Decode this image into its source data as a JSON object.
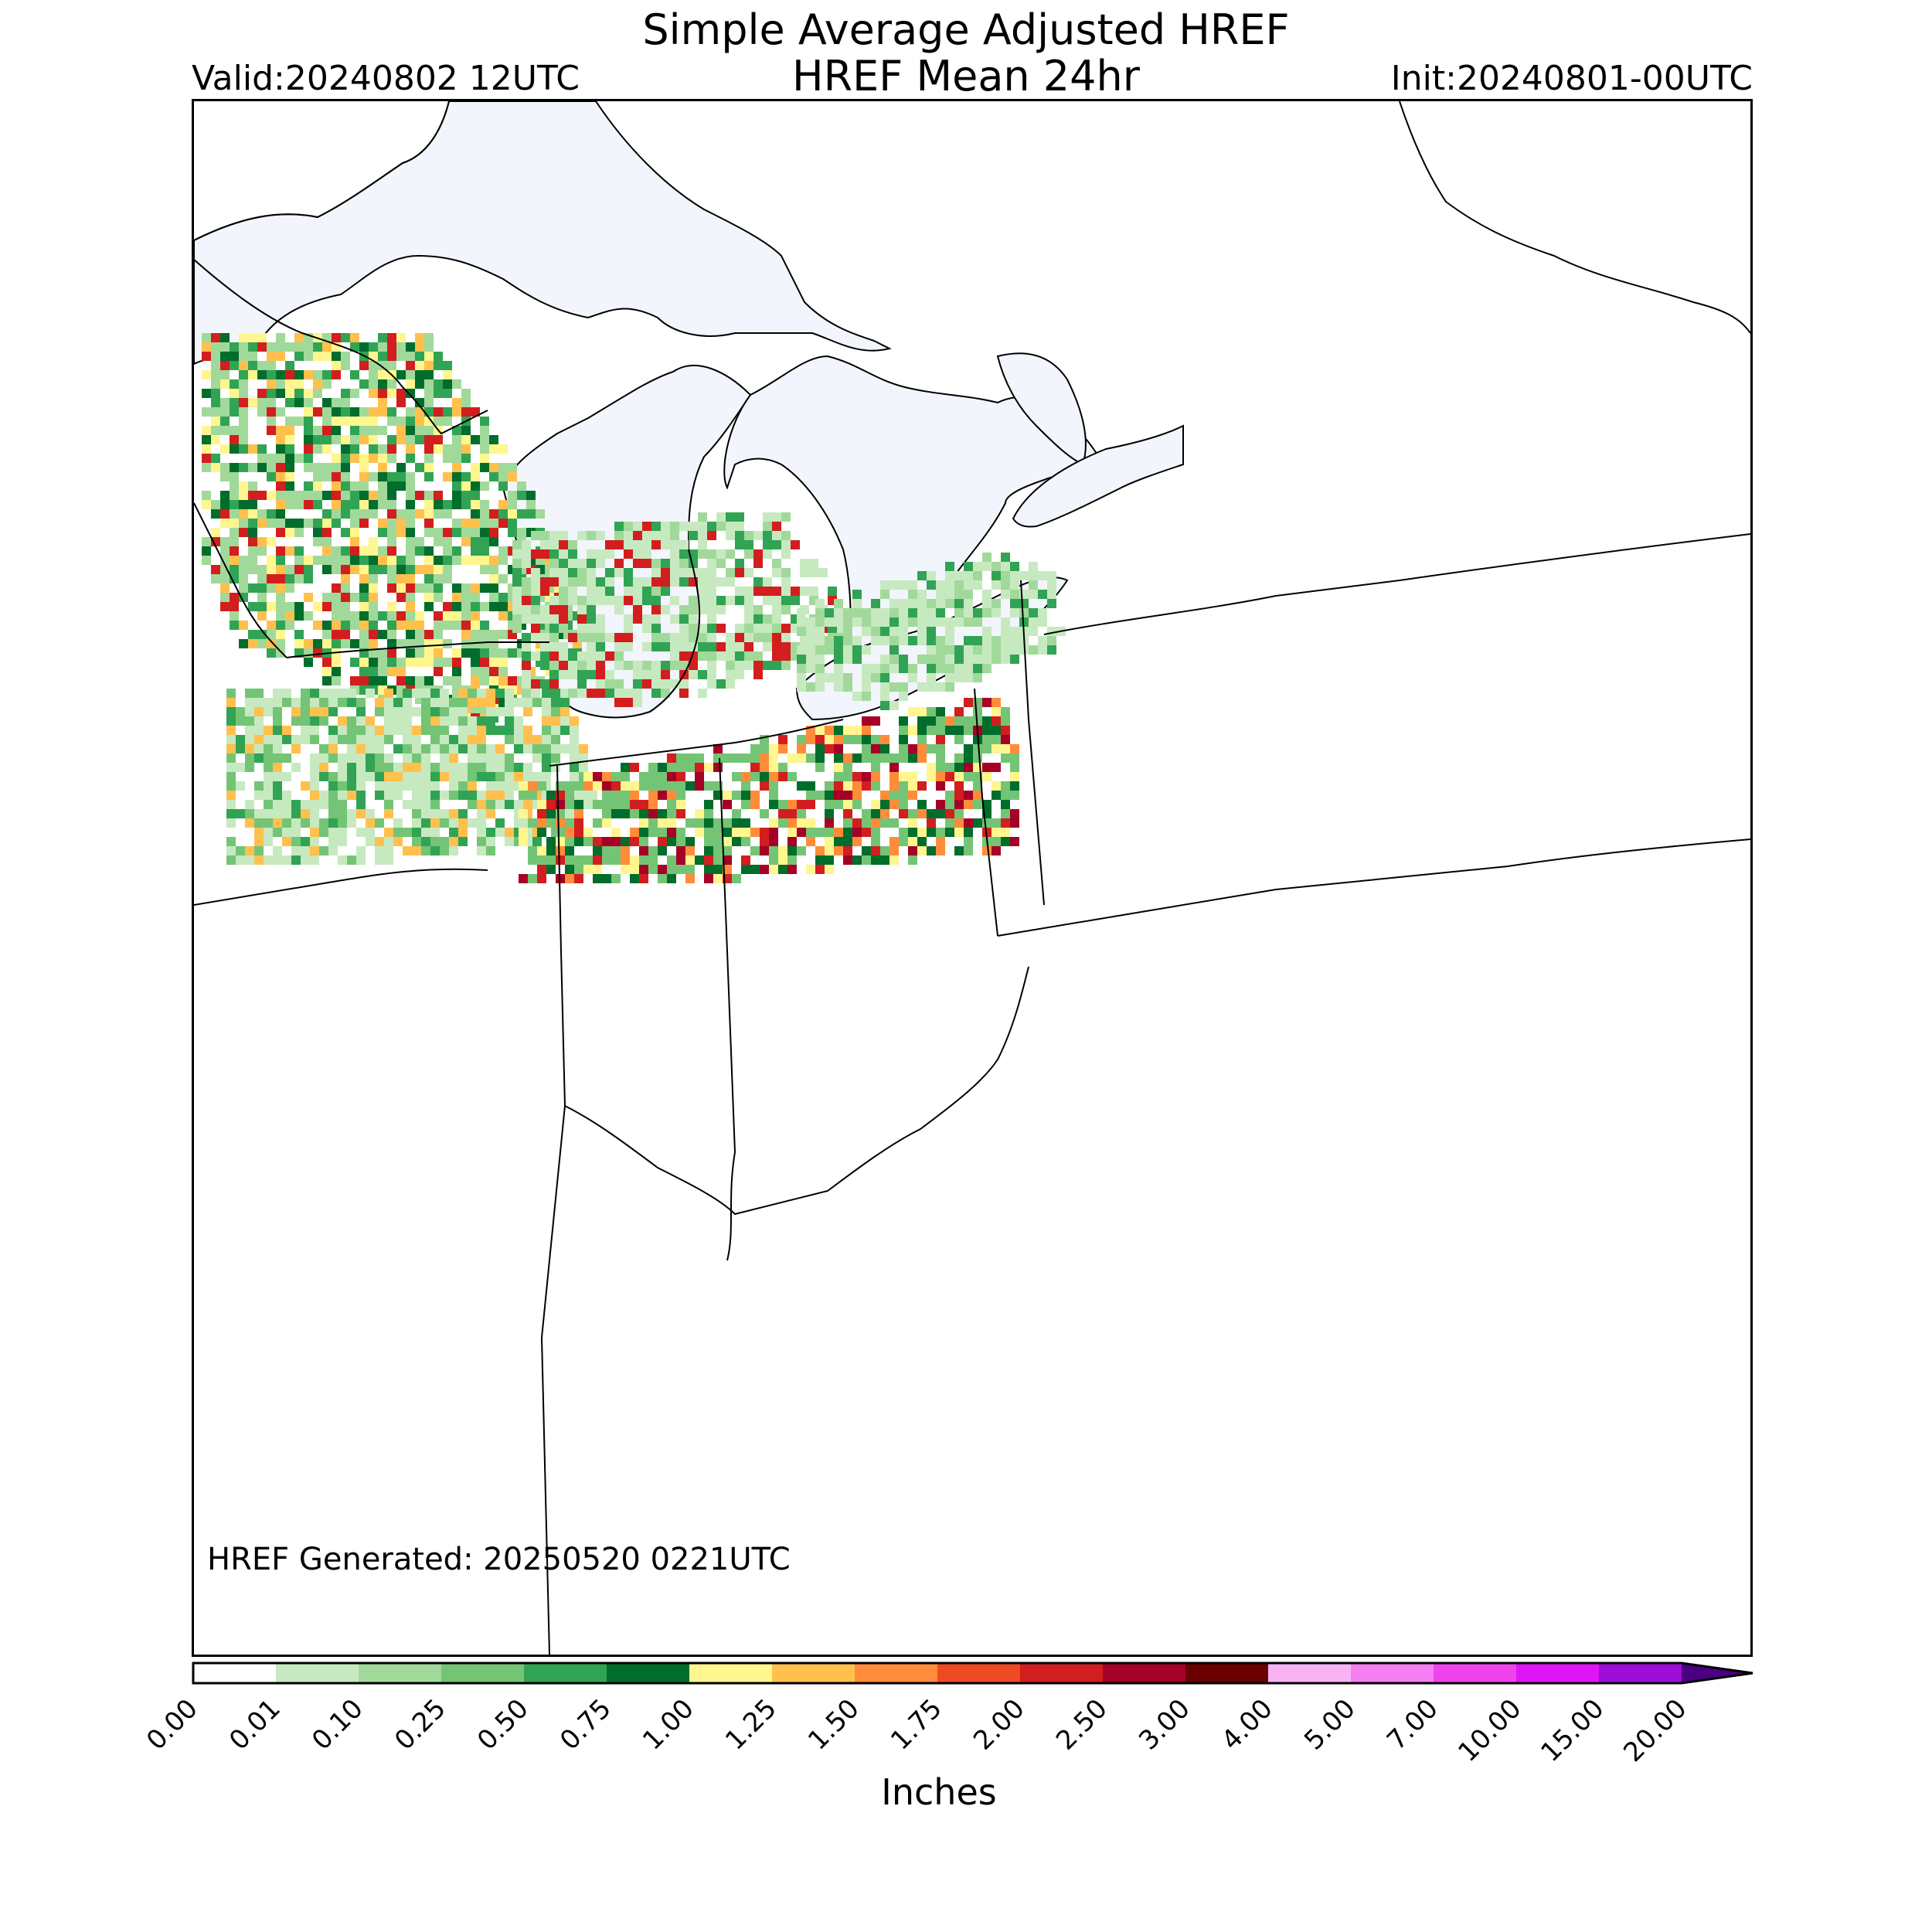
{
  "title": {
    "line1": "Simple Average Adjusted HREF",
    "line2": "HREF Mean 24hr"
  },
  "valid": "Valid:20240802 12UTC",
  "init": "Init:20240801-00UTC",
  "generated": "HREF Generated: 20250520 0221UTC",
  "units": "Inches",
  "colorbar": {
    "ticks": [
      "0.00",
      "0.01",
      "0.10",
      "0.25",
      "0.50",
      "0.75",
      "1.00",
      "1.25",
      "1.50",
      "1.75",
      "2.00",
      "2.50",
      "3.00",
      "4.00",
      "5.00",
      "7.00",
      "10.00",
      "15.00",
      "20.00"
    ],
    "colors": [
      "#ffffff",
      "#c7e9c0",
      "#a1d99b",
      "#74c476",
      "#31a354",
      "#006d2c",
      "#fff68f",
      "#ffc04d",
      "#ff8c3a",
      "#f04a24",
      "#d21e1e",
      "#a50026",
      "#6b0000",
      "#f9b3f5",
      "#f57ef3",
      "#f043ee",
      "#e015f5",
      "#9d0ed6"
    ],
    "extend_color": "#4b0082"
  },
  "map": {
    "water_color": "#f2f5fb",
    "boundary_color": "#000000",
    "precip_regions": [
      {
        "name": "wisconsin-minnesota",
        "intensity": "heavy",
        "colors": [
          "#a1d99b",
          "#31a354",
          "#006d2c",
          "#fff68f",
          "#ffc04d",
          "#d21e1e"
        ]
      },
      {
        "name": "northern-illinois-iowa",
        "intensity": "moderate",
        "colors": [
          "#c7e9c0",
          "#74c476",
          "#31a354",
          "#ffc04d"
        ]
      },
      {
        "name": "northern-indiana-ohio",
        "intensity": "heavy",
        "colors": [
          "#74c476",
          "#006d2c",
          "#fff68f",
          "#ff8c3a",
          "#d21e1e",
          "#a50026"
        ]
      },
      {
        "name": "southern-michigan",
        "intensity": "light-moderate",
        "colors": [
          "#c7e9c0",
          "#a1d99b",
          "#31a354",
          "#d21e1e"
        ]
      },
      {
        "name": "ontario-lake-erie",
        "intensity": "light",
        "colors": [
          "#c7e9c0",
          "#a1d99b",
          "#31a354"
        ]
      }
    ]
  }
}
